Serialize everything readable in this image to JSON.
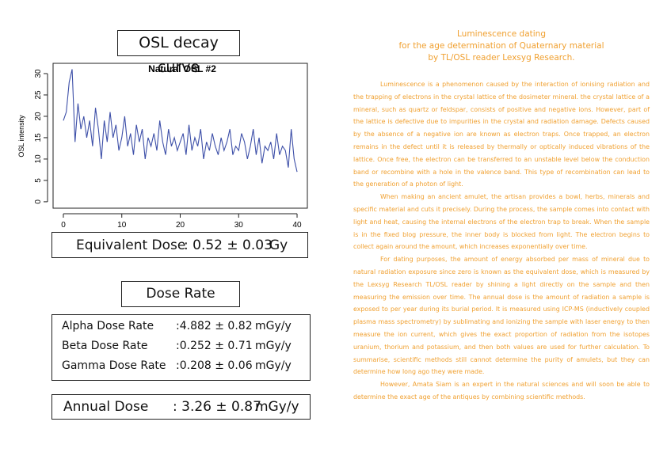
{
  "chart_data": {
    "type": "line",
    "heading": "OSL decay curve",
    "title": "Natural OSL #2",
    "y_label": "OSL intensity",
    "x": [
      0,
      0.5,
      1,
      1.5,
      2,
      2.5,
      3,
      3.5,
      4,
      4.5,
      5,
      5.5,
      6,
      6.5,
      7,
      7.5,
      8,
      8.5,
      9,
      9.5,
      10,
      10.5,
      11,
      11.5,
      12,
      12.5,
      13,
      13.5,
      14,
      14.5,
      15,
      15.5,
      16,
      16.5,
      17,
      17.5,
      18,
      18.5,
      19,
      19.5,
      20,
      20.5,
      21,
      21.5,
      22,
      22.5,
      23,
      23.5,
      24,
      24.5,
      25,
      25.5,
      26,
      26.5,
      27,
      27.5,
      28,
      28.5,
      29,
      29.5,
      30,
      30.5,
      31,
      31.5,
      32,
      32.5,
      33,
      33.5,
      34,
      34.5,
      35,
      35.5,
      36,
      36.5,
      37,
      37.5,
      38,
      38.5,
      39,
      39.5,
      40
    ],
    "series": [
      {
        "color": "#3d4fa8",
        "values": [
          19,
          21,
          28,
          31,
          14,
          23,
          17,
          20,
          15,
          19,
          13,
          22,
          17,
          10,
          19,
          14,
          21,
          15,
          18,
          12,
          15,
          20,
          13,
          16,
          11,
          18,
          14,
          17,
          10,
          15,
          13,
          16,
          12,
          19,
          14,
          11,
          17,
          13,
          15,
          12,
          14,
          16,
          11,
          18,
          12,
          15,
          13,
          17,
          10,
          14,
          12,
          16,
          13,
          11,
          15,
          12,
          14,
          17,
          11,
          13,
          12,
          16,
          14,
          10,
          13,
          17,
          11,
          15,
          9,
          13,
          12,
          14,
          10,
          16,
          11,
          13,
          12,
          8,
          17,
          10,
          7
        ]
      }
    ],
    "xlim": [
      -1.76,
      41.76
    ],
    "ylim": [
      -1.5,
      32.4
    ],
    "xticks": [
      0,
      10,
      20,
      30,
      40
    ],
    "yticks": [
      0,
      5,
      10,
      15,
      20,
      25,
      30
    ]
  },
  "equivalent_dose": {
    "label": "Equivalent Dose",
    "value": ": 0.52 ± 0.03",
    "unit": "Gy"
  },
  "dose_rate": {
    "heading": "Dose Rate",
    "rows": [
      [
        "Alpha Dose Rate",
        ":4.882 ± 0.82",
        "mGy/y"
      ],
      [
        "Beta Dose Rate",
        ":0.252 ± 0.71",
        "mGy/y"
      ],
      [
        "Gamma Dose Rate",
        ":0.208 ± 0.06",
        "mGy/y"
      ]
    ]
  },
  "annual_dose": {
    "label": "Annual Dose",
    "value": ": 3.26 ± 0.87",
    "unit": "mGy/y"
  },
  "article": {
    "title": [
      "Luminescence dating",
      "for the age determination of Quaternary material",
      "by TL/OSL reader Lexsyg Research."
    ],
    "paragraphs": [
      "Luminescence is a phenomenon caused by the interaction of ionising radiation and the trapping of electrons in the crystal lattice of the dosimeter mineral. the crystal lattice of a mineral, such as quartz or feldspar, consists of positive and negative ions. However, part of the lattice is defective due to impurities in the crystal and radiation damage. Defects caused by the absence of a negative ion are known as electron traps. Once trapped, an electron remains in the defect until it is released by thermally or optically induced vibrations of the lattice. Once free, the electron can be transferred to an unstable level below the conduction band or recombine with a hole in the valence band. This type of recombination can lead to the generation of a photon of light.",
      "When making an ancient amulet, the artisan provides a bowl, herbs, minerals and specific material and cuts it precisely. During the process, the sample comes into contact with light and heat, causing the internal electrons of the electron trap to break. When the sample is in the fixed blog pressure, the inner body is blocked from light. The electron begins to collect again around the amount, which increases exponentially over time.",
      "For dating purposes, the amount of energy absorbed per mass of mineral due to natural radiation exposure since zero is known as the equivalent dose, which is measured by the Lexsyg Research TL/OSL reader by shining a light directly on the sample and then measuring the emission over time. The annual dose is the amount of radiation a sample is exposed to per year during its burial period. It is measured using ICP-MS (inductively coupled plasma mass spectrometry) by sublimating and ionizing the sample with laser energy to then measure the ion current, which gives the exact proportion of radiation from the isotopes uranium, thorium and potassium, and then both values are used for further calculation. To summarise, scientific methods still cannot determine the purity of amulets, but they can determine how long ago they were made.",
      "However, Amata Siam is an expert in the natural sciences and will soon be able to determine the exact age of the antiques by combining scientific methods."
    ]
  }
}
